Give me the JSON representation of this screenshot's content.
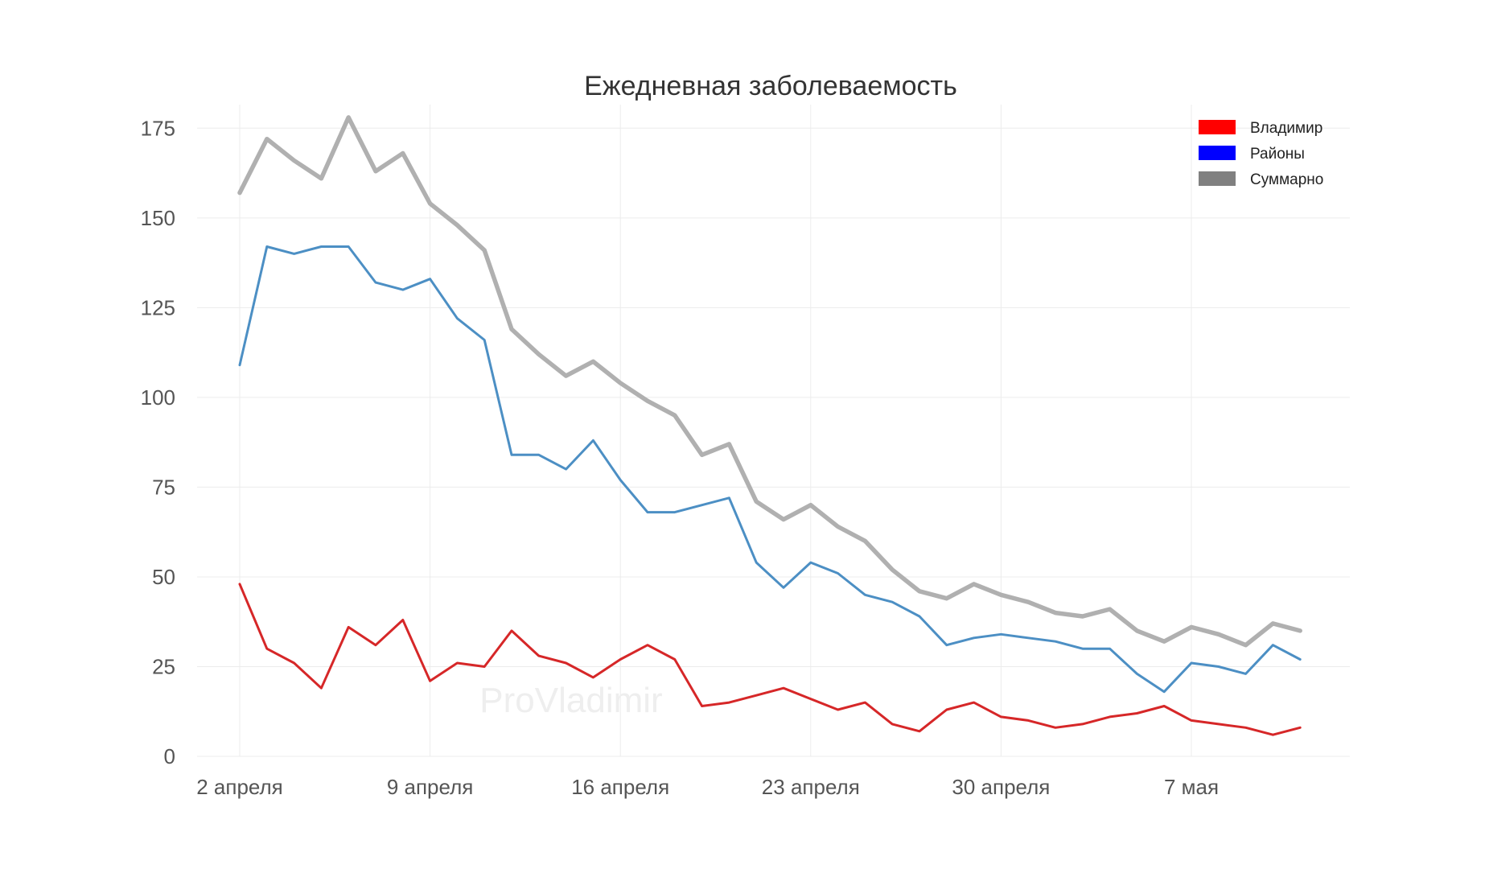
{
  "chart_data": {
    "type": "line",
    "title": "Ежедневная заболеваемость",
    "xlabel": "",
    "ylabel": "",
    "x": [
      "2 апреля",
      "3 апреля",
      "4 апреля",
      "5 апреля",
      "6 апреля",
      "7 апреля",
      "8 апреля",
      "9 апреля",
      "10 апреля",
      "11 апреля",
      "12 апреля",
      "13 апреля",
      "14 апреля",
      "15 апреля",
      "16 апреля",
      "17 апреля",
      "18 апреля",
      "19 апреля",
      "20 апреля",
      "21 апреля",
      "22 апреля",
      "23 апреля",
      "24 апреля",
      "25 апреля",
      "26 апреля",
      "27 апреля",
      "28 апреля",
      "29 апреля",
      "30 апреля",
      "1 мая",
      "2 мая",
      "3 мая",
      "4 мая",
      "5 мая",
      "6 мая",
      "7 мая",
      "8 мая",
      "9 мая",
      "10 мая",
      "11 мая"
    ],
    "x_ticks": [
      "2 апреля",
      "9 апреля",
      "16 апреля",
      "23 апреля",
      "30 апреля",
      "7 мая"
    ],
    "y_ticks": [
      0,
      25,
      50,
      75,
      100,
      125,
      150,
      175
    ],
    "ylim": [
      0,
      180
    ],
    "grid": true,
    "legend_position": "top-right",
    "series": [
      {
        "name": "Владимир",
        "color": "#d62728",
        "legend_color": "#ff0000",
        "values": [
          48,
          30,
          26,
          19,
          36,
          31,
          38,
          21,
          26,
          25,
          35,
          28,
          26,
          22,
          27,
          31,
          27,
          14,
          15,
          17,
          19,
          16,
          13,
          15,
          9,
          7,
          13,
          15,
          11,
          10,
          8,
          9,
          11,
          12,
          14,
          10,
          9,
          8,
          6,
          8
        ]
      },
      {
        "name": "Районы",
        "color": "#4c8fc4",
        "legend_color": "#0000ff",
        "values": [
          109,
          142,
          140,
          142,
          142,
          132,
          130,
          133,
          122,
          116,
          84,
          84,
          80,
          88,
          77,
          68,
          68,
          70,
          72,
          54,
          47,
          54,
          51,
          45,
          43,
          39,
          31,
          33,
          34,
          33,
          32,
          30,
          30,
          23,
          18,
          26,
          25,
          23,
          31,
          27
        ]
      },
      {
        "name": "Суммарно",
        "color": "#b0b0b0",
        "legend_color": "#808080",
        "values": [
          157,
          172,
          166,
          161,
          178,
          163,
          168,
          154,
          148,
          141,
          119,
          112,
          106,
          110,
          104,
          99,
          95,
          84,
          87,
          71,
          66,
          70,
          64,
          60,
          52,
          46,
          44,
          48,
          45,
          43,
          40,
          39,
          41,
          35,
          32,
          36,
          34,
          31,
          37,
          35
        ]
      }
    ]
  },
  "watermark": "ProVladimir"
}
